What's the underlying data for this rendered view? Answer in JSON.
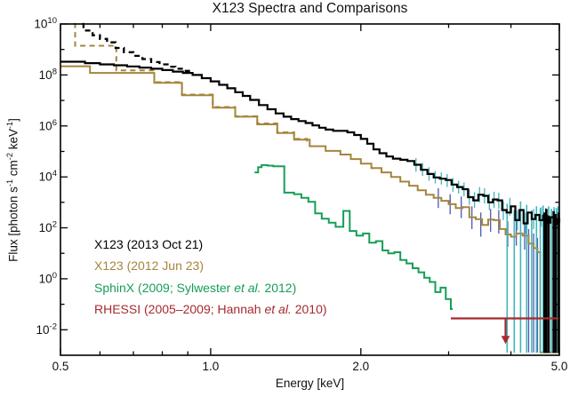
{
  "chart_data": {
    "type": "line",
    "title": "X123 Spectra and Comparisons",
    "xlabel": "Energy [keV]",
    "ylabel_parts": [
      [
        "t",
        "Flux [photon s"
      ],
      [
        "s",
        "-1"
      ],
      [
        "t",
        " cm"
      ],
      [
        "s",
        "-2"
      ],
      [
        "t",
        " keV"
      ],
      [
        "s",
        "-1"
      ],
      [
        "t",
        "]"
      ]
    ],
    "x_scale": "log",
    "y_scale": "log",
    "xlim": [
      0.5,
      5.0
    ],
    "ylim_exponents": [
      -3,
      10
    ],
    "x_major_ticks": [
      {
        "value": 0.5,
        "label": "0.5"
      },
      {
        "value": 1.0,
        "label": "1.0"
      },
      {
        "value": 2.0,
        "label": "2.0"
      },
      {
        "value": 5.0,
        "label": "5.0"
      }
    ],
    "x_minor_ticks": [
      0.6,
      0.7,
      0.8,
      0.9,
      3.0,
      4.0
    ],
    "y_major_tick_exponents": [
      10,
      8,
      6,
      4,
      2,
      0,
      -2
    ],
    "y_minor_tick_exponents": [
      9,
      7,
      5,
      3,
      1,
      -1
    ],
    "grid": false,
    "legend_position": "inside-lower-left",
    "colors": {
      "black": "#000000",
      "tan": "#a5853c",
      "green": "#169d58",
      "red": "#a62a30",
      "cyan": "#44b4bc",
      "navy": "#4c56b4"
    },
    "series": [
      {
        "id": "x123-2012-dashed",
        "color": "#a5853c",
        "line": "dashed",
        "mode": "steps",
        "width": 2.0,
        "points": [
          [
            0.532,
            10000000000.0
          ],
          [
            0.535,
            1400000000.0
          ],
          [
            0.647,
            150000000.0
          ],
          [
            0.771,
            52000000.0
          ],
          [
            0.876,
            17000000.0
          ],
          [
            1.01,
            5500000.0
          ],
          [
            1.12,
            2400000.0
          ],
          [
            1.24,
            1250000.0
          ],
          [
            1.36,
            560000.0
          ],
          [
            1.47,
            310000.0
          ],
          [
            1.56,
            170000.0
          ]
        ]
      },
      {
        "id": "x123-2012",
        "name": "X123 (2012 Jun 23)",
        "color": "#a5853c",
        "line": "solid",
        "mode": "steps",
        "width": 2.0,
        "points": [
          [
            0.5,
            220000000.0
          ],
          [
            0.573,
            120000000.0
          ],
          [
            0.771,
            49000000.0
          ],
          [
            0.876,
            16000000.0
          ],
          [
            1.01,
            5200000.0
          ],
          [
            1.12,
            2300000.0
          ],
          [
            1.24,
            1150000.0
          ],
          [
            1.36,
            530000.0
          ],
          [
            1.47,
            290000.0
          ],
          [
            1.58,
            160000.0
          ],
          [
            1.7,
            105000.0
          ],
          [
            1.82,
            75000.0
          ],
          [
            1.91,
            50000.0
          ],
          [
            2.0,
            33000.0
          ],
          [
            2.1,
            22000.0
          ],
          [
            2.2,
            15000.0
          ],
          [
            2.3,
            10000.0
          ],
          [
            2.4,
            6500.0
          ],
          [
            2.5,
            4500.0
          ],
          [
            2.6,
            3000.0
          ],
          [
            2.7,
            2000.0
          ],
          [
            2.8,
            1500.0
          ],
          [
            2.9,
            1150.0
          ],
          [
            3.0,
            850.0
          ],
          [
            3.1,
            600.0
          ],
          [
            3.2,
            650.0
          ],
          [
            3.3,
            260.0
          ],
          [
            3.4,
            220.0
          ],
          [
            3.5,
            130.0
          ],
          [
            3.6,
            210.0
          ],
          [
            3.7,
            200.0
          ],
          [
            3.8,
            90.0
          ],
          [
            3.9,
            55.0
          ],
          [
            4.0,
            45.0
          ],
          [
            4.1,
            60.0
          ],
          [
            4.22,
            50.0
          ],
          [
            4.34,
            24.0
          ],
          [
            4.44,
            16.0
          ],
          [
            4.52,
            11.0
          ],
          [
            4.58,
            0.0013
          ],
          [
            5.0,
            0.0013
          ]
        ]
      },
      {
        "id": "x123-2013-dashed",
        "color": "#000000",
        "line": "dashed",
        "mode": "steps",
        "width": 2.3,
        "points": [
          [
            0.553,
            10000000000.0
          ],
          [
            0.556,
            5500000000.0
          ],
          [
            0.58,
            3600000000.0
          ],
          [
            0.6,
            2600000000.0
          ],
          [
            0.62,
            1900000000.0
          ],
          [
            0.645,
            1150000000.0
          ],
          [
            0.67,
            780000000.0
          ],
          [
            0.7,
            560000000.0
          ],
          [
            0.73,
            420000000.0
          ],
          [
            0.76,
            320000000.0
          ],
          [
            0.79,
            260000000.0
          ],
          [
            0.82,
            210000000.0
          ],
          [
            0.85,
            175000000.0
          ],
          [
            0.88,
            145000000.0
          ],
          [
            0.91,
            115000000.0
          ]
        ]
      },
      {
        "id": "x123-2013",
        "name": "X123 (2013 Oct 21)",
        "color": "#000000",
        "line": "solid",
        "mode": "steps",
        "width": 2.2,
        "points": [
          [
            0.5,
            330000000.0
          ],
          [
            0.56,
            290000000.0
          ],
          [
            0.6,
            260000000.0
          ],
          [
            0.64,
            240000000.0
          ],
          [
            0.68,
            215000000.0
          ],
          [
            0.72,
            195000000.0
          ],
          [
            0.76,
            175000000.0
          ],
          [
            0.8,
            155000000.0
          ],
          [
            0.84,
            135000000.0
          ],
          [
            0.88,
            120000000.0
          ],
          [
            0.92,
            100000000.0
          ],
          [
            0.96,
            75000000.0
          ],
          [
            1.0,
            56000000.0
          ],
          [
            1.04,
            41000000.0
          ],
          [
            1.08,
            30000000.0
          ],
          [
            1.12,
            21000000.0
          ],
          [
            1.16,
            15000000.0
          ],
          [
            1.2,
            10500000.0
          ],
          [
            1.25,
            6600000.0
          ],
          [
            1.3,
            4500000.0
          ],
          [
            1.35,
            3100000.0
          ],
          [
            1.4,
            2300000.0
          ],
          [
            1.45,
            1850000.0
          ],
          [
            1.5,
            1550000.0
          ],
          [
            1.55,
            1300000.0
          ],
          [
            1.6,
            1050000.0
          ],
          [
            1.65,
            850000.0
          ],
          [
            1.7,
            720000.0
          ],
          [
            1.76,
            640000.0
          ],
          [
            1.82,
            640000.0
          ],
          [
            1.88,
            560000.0
          ],
          [
            1.94,
            440000.0
          ],
          [
            2.0,
            310000.0
          ],
          [
            2.06,
            200000.0
          ],
          [
            2.12,
            120000.0
          ],
          [
            2.18,
            85000.0
          ],
          [
            2.25,
            63000.0
          ],
          [
            2.32,
            52000.0
          ],
          [
            2.4,
            47000.0
          ],
          [
            2.48,
            42000.0
          ],
          [
            2.56,
            30000.0
          ],
          [
            2.64,
            19000.0
          ],
          [
            2.72,
            13000.0
          ],
          [
            2.8,
            9500.0
          ],
          [
            2.88,
            8500.0
          ],
          [
            2.96,
            7500.0
          ],
          [
            3.04,
            5000.0
          ],
          [
            3.12,
            4000.0
          ],
          [
            3.2,
            3300.0
          ],
          [
            3.28,
            1600.0
          ],
          [
            3.36,
            1200.0
          ],
          [
            3.44,
            2000.0
          ],
          [
            3.52,
            1800.0
          ],
          [
            3.6,
            1000.0
          ],
          [
            3.68,
            1300.0
          ],
          [
            3.76,
            1200.0
          ],
          [
            3.84,
            500.0
          ],
          [
            3.92,
            400.0
          ],
          [
            4.0,
            700.0
          ],
          [
            4.08,
            200.0
          ],
          [
            4.16,
            500.0
          ],
          [
            4.24,
            150.0
          ],
          [
            4.32,
            400.0
          ],
          [
            4.4,
            220.0
          ],
          [
            4.48,
            320.0
          ],
          [
            4.56,
            200.0
          ],
          [
            4.64,
            300.0
          ],
          [
            4.72,
            160.0
          ],
          [
            4.8,
            260.0
          ],
          [
            4.88,
            140.0
          ],
          [
            4.94,
            220.0
          ],
          [
            5.0,
            160.0
          ]
        ]
      },
      {
        "id": "sphinx",
        "name": "SphinX (2009; Sylwester et al. 2012)",
        "color": "#169d58",
        "line": "solid",
        "mode": "steps",
        "width": 2.0,
        "points": [
          [
            1.225,
            15000.0
          ],
          [
            1.245,
            24000.0
          ],
          [
            1.265,
            29000.0
          ],
          [
            1.3,
            27500.0
          ],
          [
            1.335,
            26000.0
          ],
          [
            1.405,
            2400.0
          ],
          [
            1.47,
            2100.0
          ],
          [
            1.52,
            1500.0
          ],
          [
            1.57,
            1050.0
          ],
          [
            1.62,
            370.0
          ],
          [
            1.67,
            230.0
          ],
          [
            1.725,
            160.0
          ],
          [
            1.78,
            110.0
          ],
          [
            1.845,
            460.0
          ],
          [
            1.9,
            75.0
          ],
          [
            1.96,
            50.0
          ],
          [
            2.02,
            60.0
          ],
          [
            2.08,
            26.0
          ],
          [
            2.145,
            30.0
          ],
          [
            2.21,
            13.0
          ],
          [
            2.27,
            10.0
          ],
          [
            2.335,
            11.0
          ],
          [
            2.4,
            5.5
          ],
          [
            2.47,
            4.0
          ],
          [
            2.54,
            2.6
          ],
          [
            2.61,
            1.8
          ],
          [
            2.68,
            1.1
          ],
          [
            2.75,
            0.75
          ],
          [
            2.82,
            0.3
          ],
          [
            2.89,
            0.45
          ],
          [
            2.96,
            0.16
          ],
          [
            3.03,
            0.065
          ],
          [
            3.055,
            0.065
          ]
        ]
      }
    ],
    "upper_limit": {
      "id": "rhessi",
      "name": "RHESSI (2005–2009; Hannah et al. 2010)",
      "color": "#a62a30",
      "flux": 0.028,
      "e_start": 3.03,
      "e_end": 5.0,
      "arrow_e": 3.9,
      "arrow_flux_to": 0.0085
    },
    "error_bars": {
      "cyan_color": "#44b4bc",
      "navy_color": "#4c56b4",
      "cyan": [
        [
          2.58,
          16000.0,
          55000.0
        ],
        [
          2.66,
          11000.0,
          35000.0
        ],
        [
          2.74,
          7000.0,
          24000.0
        ],
        [
          2.82,
          5500.0,
          17000.0
        ],
        [
          2.9,
          5000.0,
          15000.0
        ],
        [
          2.98,
          4000.0,
          13000.0
        ],
        [
          3.06,
          2600.0,
          9000.0
        ],
        [
          3.14,
          2200.0,
          7000.0
        ],
        [
          3.22,
          1700.0,
          6000.0
        ],
        [
          3.3,
          800.0,
          3200.0
        ],
        [
          3.38,
          600.0,
          2500.0
        ],
        [
          3.46,
          1000.0,
          4000.0
        ],
        [
          3.54,
          900.0,
          3600.0
        ],
        [
          3.62,
          500.0,
          2200.0
        ],
        [
          3.7,
          600.0,
          2600.0
        ],
        [
          3.78,
          550.0,
          2400.0
        ],
        [
          3.86,
          200.0,
          1100.0
        ],
        [
          3.98,
          300.0,
          1500.0
        ],
        [
          4.12,
          80.0,
          500.0
        ],
        [
          4.28,
          60.0,
          400.0
        ],
        [
          4.44,
          90.0,
          550.0
        ],
        [
          4.6,
          110.0,
          650.0
        ]
      ],
      "cyan_tall": [
        [
          3.93,
          900.0
        ],
        [
          4.06,
          500.0
        ],
        [
          4.18,
          1100.0
        ],
        [
          4.3,
          800.0
        ],
        [
          4.4,
          500.0
        ],
        [
          4.5,
          700.0
        ],
        [
          4.58,
          600.0
        ],
        [
          4.64,
          750.0
        ],
        [
          4.7,
          600.0
        ],
        [
          4.76,
          700.0
        ],
        [
          4.82,
          550.0
        ],
        [
          4.88,
          650.0
        ],
        [
          4.93,
          600.0
        ],
        [
          4.97,
          700.0
        ]
      ],
      "navy": [
        [
          2.86,
          600.0,
          3600.0
        ],
        [
          3.02,
          340.0,
          2100.0
        ],
        [
          3.18,
          240.0,
          1700.0
        ],
        [
          3.34,
          90.0,
          700.0
        ],
        [
          3.48,
          45.0,
          400.0
        ],
        [
          3.64,
          70.0,
          550.0
        ],
        [
          3.78,
          60.0,
          500.0
        ],
        [
          3.94,
          18.0,
          180.0
        ],
        [
          4.1,
          20.0,
          190.0
        ],
        [
          4.26,
          14.0,
          150.0
        ],
        [
          4.34,
          0.0013,
          90.0
        ],
        [
          4.44,
          0.0013,
          60.0
        ],
        [
          4.52,
          0.0013,
          40.0
        ]
      ],
      "black_cluster": [
        [
          4.67,
          400.0
        ],
        [
          4.71,
          550.0
        ],
        [
          4.76,
          300.0
        ],
        [
          4.87,
          450.0
        ],
        [
          4.92,
          350.0
        ],
        [
          4.985,
          400.0
        ]
      ]
    },
    "legend": {
      "items": [
        {
          "pre": "X123 (2013 Oct 21)",
          "italic": "",
          "post": "",
          "color": "#000000"
        },
        {
          "pre": "X123 (2012 Jun 23)",
          "italic": "",
          "post": "",
          "color": "#a5853c"
        },
        {
          "pre": "SphinX (2009; Sylwester ",
          "italic": "et al.",
          "post": " 2012)",
          "color": "#169d58"
        },
        {
          "pre": "RHESSI (2005–2009; Hannah ",
          "italic": "et al.",
          "post": " 2010)",
          "color": "#a62a30"
        }
      ]
    }
  }
}
